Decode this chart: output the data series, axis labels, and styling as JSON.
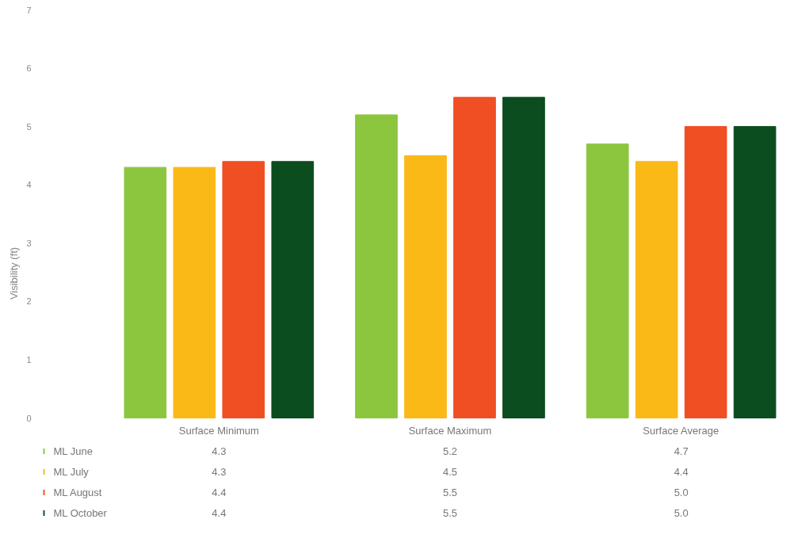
{
  "chart_data": {
    "type": "bar",
    "ylabel": "Visibility (ft)",
    "categories": [
      "Surface Minimum",
      "Surface Maximum",
      "Surface Average"
    ],
    "series": [
      {
        "name": "ML June",
        "color": "#8cc63f",
        "values": [
          4.3,
          5.2,
          4.7
        ],
        "value_labels": [
          "4.3",
          "5.2",
          "4.7"
        ]
      },
      {
        "name": "ML July",
        "color": "#fbb917",
        "values": [
          4.3,
          4.5,
          4.4
        ],
        "value_labels": [
          "4.3",
          "4.5",
          "4.4"
        ]
      },
      {
        "name": "ML August",
        "color": "#f04e23",
        "values": [
          4.4,
          5.5,
          5.0
        ],
        "value_labels": [
          "4.4",
          "5.5",
          "5.0"
        ]
      },
      {
        "name": "ML October",
        "color": "#0b4d1f",
        "values": [
          4.4,
          5.5,
          5.0
        ],
        "value_labels": [
          "4.4",
          "5.5",
          "5.0"
        ]
      }
    ],
    "ylim": [
      0,
      7
    ],
    "yticks": [
      0,
      1,
      2,
      3,
      4,
      5,
      6,
      7
    ],
    "grid": false,
    "legend": "bottom left"
  }
}
